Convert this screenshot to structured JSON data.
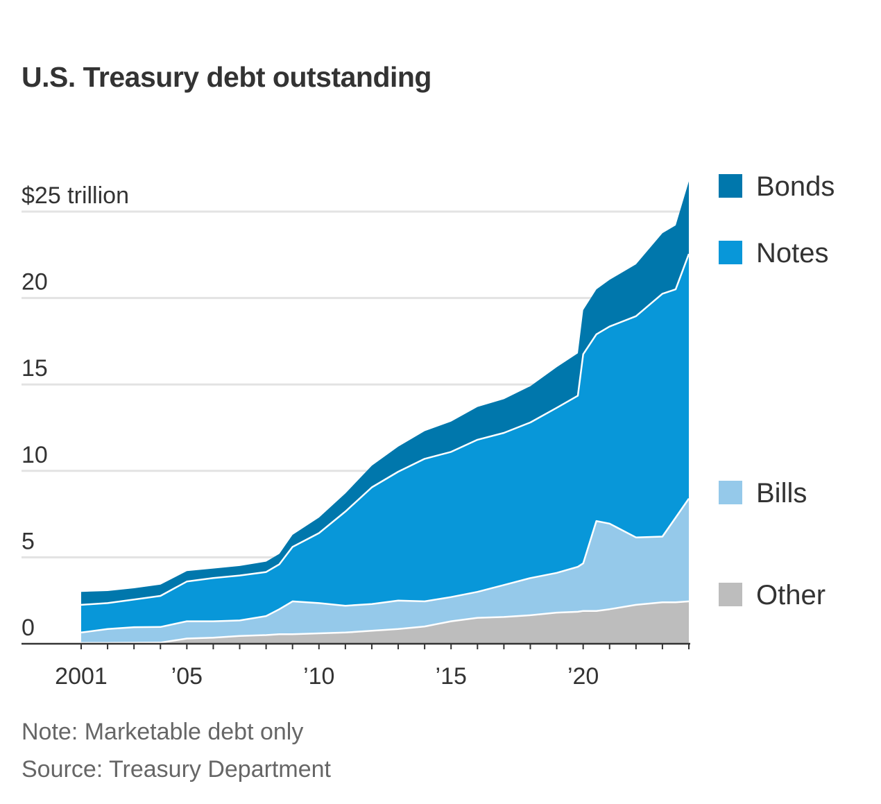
{
  "chart_data": {
    "type": "area",
    "stacked": true,
    "title": "U.S. Treasury debt outstanding",
    "unit_label": "$25 trillion",
    "ylim": [
      0,
      25
    ],
    "xlim": [
      2001,
      2024
    ],
    "y_ticks": [
      {
        "value": 0,
        "label": "0"
      },
      {
        "value": 5,
        "label": "5"
      },
      {
        "value": 10,
        "label": "10"
      },
      {
        "value": 15,
        "label": "15"
      },
      {
        "value": 20,
        "label": "20"
      },
      {
        "value": 25,
        "label": "$25 trillion"
      }
    ],
    "x_ticks": [
      {
        "value": 2001,
        "label": "2001"
      },
      {
        "value": 2005,
        "label": "’05"
      },
      {
        "value": 2010,
        "label": "’10"
      },
      {
        "value": 2015,
        "label": "’15"
      },
      {
        "value": 2020,
        "label": "’20"
      }
    ],
    "grid": true,
    "legend_position": "right",
    "x": [
      2001,
      2002,
      2003,
      2004,
      2005,
      2006,
      2007,
      2008,
      2008.5,
      2009,
      2010,
      2011,
      2012,
      2013,
      2014,
      2015,
      2016,
      2017,
      2018,
      2019,
      2019.8,
      2020,
      2020.5,
      2021,
      2022,
      2023,
      2023.5,
      2024
    ],
    "series": [
      {
        "name": "Other",
        "color": "#bdbdbd",
        "values": [
          0.05,
          0.05,
          0.06,
          0.07,
          0.3,
          0.35,
          0.45,
          0.5,
          0.55,
          0.55,
          0.6,
          0.65,
          0.75,
          0.85,
          1.0,
          1.3,
          1.5,
          1.55,
          1.65,
          1.8,
          1.85,
          1.9,
          1.9,
          2.0,
          2.25,
          2.4,
          2.4,
          2.45
        ]
      },
      {
        "name": "Bills",
        "color": "#95c9ea",
        "values": [
          0.6,
          0.8,
          0.9,
          0.9,
          1.0,
          0.95,
          0.9,
          1.1,
          1.45,
          1.9,
          1.75,
          1.55,
          1.55,
          1.65,
          1.45,
          1.4,
          1.5,
          1.85,
          2.15,
          2.3,
          2.6,
          2.75,
          5.2,
          4.95,
          3.9,
          3.8,
          4.9,
          5.95
        ]
      },
      {
        "name": "Notes",
        "color": "#0897d9",
        "values": [
          1.6,
          1.5,
          1.6,
          1.8,
          2.3,
          2.5,
          2.6,
          2.55,
          2.6,
          3.15,
          4.05,
          5.45,
          6.75,
          7.45,
          8.25,
          8.4,
          8.8,
          8.8,
          9.0,
          9.55,
          9.9,
          12.1,
          10.8,
          11.4,
          12.8,
          14.05,
          13.2,
          14.15
        ]
      },
      {
        "name": "Bonds",
        "color": "#0077ac",
        "values": [
          0.75,
          0.7,
          0.65,
          0.65,
          0.6,
          0.55,
          0.55,
          0.6,
          0.6,
          0.7,
          0.9,
          1.05,
          1.25,
          1.45,
          1.6,
          1.75,
          1.9,
          1.95,
          2.1,
          2.35,
          2.45,
          2.55,
          2.6,
          2.7,
          3.0,
          3.5,
          3.7,
          4.2
        ]
      }
    ],
    "notes": [
      "Note: Marketable debt only",
      "Source: Treasury Department"
    ]
  }
}
